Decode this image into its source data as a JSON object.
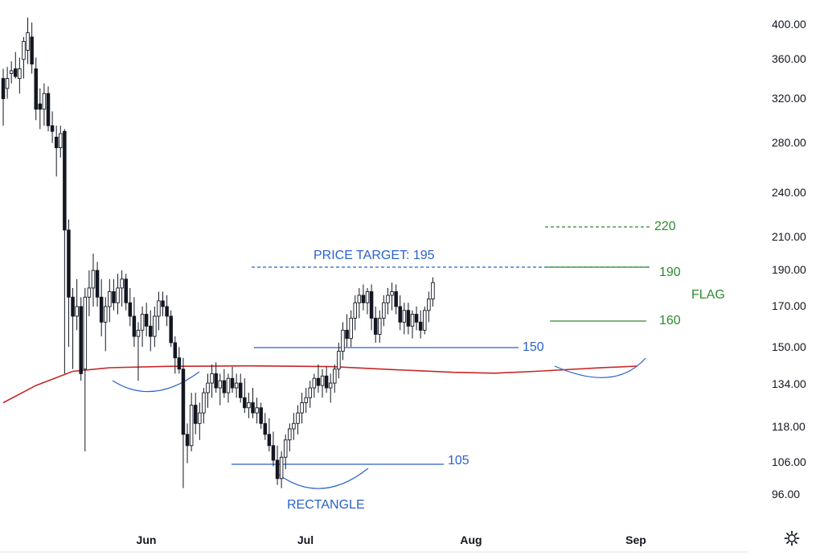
{
  "colors": {
    "candle": "#131722",
    "ma_line": "#c62828",
    "blue": "#2962c9",
    "green": "#2e8b2e",
    "axis_text": "#131722",
    "background": "#ffffff"
  },
  "x_axis": {
    "labels": [
      "Jun",
      "Jul",
      "Aug",
      "Sep"
    ]
  },
  "y_axis": {
    "scale": "log",
    "range": [
      88,
      440
    ],
    "labels": [
      "400.00",
      "360.00",
      "320.00",
      "280.00",
      "240.00",
      "210.00",
      "190.00",
      "170.00",
      "150.00",
      "134.00",
      "118.00",
      "106.00",
      "96.00"
    ]
  },
  "annotations": {
    "price_target": "PRICE TARGET: 195",
    "rectangle": "RECTANGLE",
    "flag": "FLAG",
    "level_150": "150",
    "level_105": "105",
    "level_220": "220",
    "level_190": "190",
    "level_160": "160"
  },
  "settings_icon": "gear-icon",
  "chart_data": {
    "type": "candlestick",
    "y_scale": "log",
    "ylim": [
      88,
      440
    ],
    "x_ticks": [
      "Jun",
      "Jul",
      "Aug",
      "Sep"
    ],
    "moving_average": {
      "color": "#c62828",
      "points": [
        [
          0,
          136
        ],
        [
          8,
          143
        ],
        [
          17,
          149
        ],
        [
          26,
          150.6
        ],
        [
          40,
          151.2
        ],
        [
          60,
          151.4
        ],
        [
          80,
          151.1
        ],
        [
          95,
          149.8
        ],
        [
          110,
          148.6
        ],
        [
          120,
          148.2
        ],
        [
          130,
          149
        ],
        [
          145,
          150.5
        ],
        [
          155,
          151.3
        ]
      ]
    },
    "candles": [
      {
        "o": 350,
        "h": 360,
        "l": 305,
        "c": 330
      },
      {
        "o": 340,
        "h": 362,
        "l": 330,
        "c": 350
      },
      {
        "o": 355,
        "h": 368,
        "l": 345,
        "c": 358
      },
      {
        "o": 360,
        "h": 378,
        "l": 350,
        "c": 352
      },
      {
        "o": 350,
        "h": 372,
        "l": 335,
        "c": 360
      },
      {
        "o": 370,
        "h": 395,
        "l": 350,
        "c": 390
      },
      {
        "o": 380,
        "h": 418,
        "l": 365,
        "c": 400
      },
      {
        "o": 395,
        "h": 412,
        "l": 355,
        "c": 365
      },
      {
        "o": 360,
        "h": 372,
        "l": 310,
        "c": 320
      },
      {
        "o": 325,
        "h": 340,
        "l": 302,
        "c": 320
      },
      {
        "o": 320,
        "h": 345,
        "l": 305,
        "c": 335
      },
      {
        "o": 335,
        "h": 342,
        "l": 300,
        "c": 305
      },
      {
        "o": 305,
        "h": 318,
        "l": 290,
        "c": 300
      },
      {
        "o": 295,
        "h": 305,
        "l": 263,
        "c": 286
      },
      {
        "o": 286,
        "h": 305,
        "l": 278,
        "c": 298
      },
      {
        "o": 300,
        "h": 302,
        "l": 148,
        "c": 225
      },
      {
        "o": 225,
        "h": 232,
        "l": 160,
        "c": 185
      },
      {
        "o": 185,
        "h": 190,
        "l": 150,
        "c": 175
      },
      {
        "o": 175,
        "h": 195,
        "l": 168,
        "c": 180
      },
      {
        "o": 180,
        "h": 185,
        "l": 145,
        "c": 148
      },
      {
        "o": 150,
        "h": 190,
        "l": 118,
        "c": 185
      },
      {
        "o": 185,
        "h": 200,
        "l": 175,
        "c": 190
      },
      {
        "o": 190,
        "h": 210,
        "l": 180,
        "c": 200
      },
      {
        "o": 200,
        "h": 205,
        "l": 180,
        "c": 185
      },
      {
        "o": 185,
        "h": 195,
        "l": 165,
        "c": 172
      },
      {
        "o": 172,
        "h": 185,
        "l": 158,
        "c": 180
      },
      {
        "o": 180,
        "h": 195,
        "l": 172,
        "c": 188
      },
      {
        "o": 188,
        "h": 195,
        "l": 178,
        "c": 182
      },
      {
        "o": 182,
        "h": 198,
        "l": 176,
        "c": 190
      },
      {
        "o": 190,
        "h": 200,
        "l": 180,
        "c": 195
      },
      {
        "o": 195,
        "h": 198,
        "l": 178,
        "c": 182
      },
      {
        "o": 182,
        "h": 190,
        "l": 170,
        "c": 175
      },
      {
        "o": 175,
        "h": 185,
        "l": 160,
        "c": 165
      },
      {
        "o": 165,
        "h": 172,
        "l": 145,
        "c": 168
      },
      {
        "o": 168,
        "h": 180,
        "l": 160,
        "c": 176
      },
      {
        "o": 176,
        "h": 182,
        "l": 165,
        "c": 170
      },
      {
        "o": 170,
        "h": 178,
        "l": 158,
        "c": 165
      },
      {
        "o": 165,
        "h": 180,
        "l": 160,
        "c": 175
      },
      {
        "o": 175,
        "h": 188,
        "l": 168,
        "c": 183
      },
      {
        "o": 183,
        "h": 188,
        "l": 175,
        "c": 180
      },
      {
        "o": 180,
        "h": 186,
        "l": 170,
        "c": 175
      },
      {
        "o": 175,
        "h": 178,
        "l": 160,
        "c": 162
      },
      {
        "o": 162,
        "h": 165,
        "l": 148,
        "c": 155
      },
      {
        "o": 155,
        "h": 160,
        "l": 148,
        "c": 150
      },
      {
        "o": 150,
        "h": 155,
        "l": 106,
        "c": 124
      },
      {
        "o": 124,
        "h": 128,
        "l": 114,
        "c": 120
      },
      {
        "o": 120,
        "h": 140,
        "l": 118,
        "c": 135
      },
      {
        "o": 135,
        "h": 140,
        "l": 124,
        "c": 128
      },
      {
        "o": 128,
        "h": 136,
        "l": 122,
        "c": 132
      },
      {
        "o": 132,
        "h": 142,
        "l": 128,
        "c": 140
      },
      {
        "o": 140,
        "h": 148,
        "l": 134,
        "c": 144
      },
      {
        "o": 144,
        "h": 152,
        "l": 138,
        "c": 148
      },
      {
        "o": 148,
        "h": 153,
        "l": 140,
        "c": 142
      },
      {
        "o": 142,
        "h": 148,
        "l": 135,
        "c": 145
      },
      {
        "o": 145,
        "h": 150,
        "l": 138,
        "c": 140
      },
      {
        "o": 140,
        "h": 148,
        "l": 136,
        "c": 146
      },
      {
        "o": 146,
        "h": 151,
        "l": 140,
        "c": 142
      },
      {
        "o": 142,
        "h": 148,
        "l": 138,
        "c": 144
      },
      {
        "o": 144,
        "h": 148,
        "l": 136,
        "c": 138
      },
      {
        "o": 138,
        "h": 146,
        "l": 132,
        "c": 134
      },
      {
        "o": 134,
        "h": 140,
        "l": 130,
        "c": 136
      },
      {
        "o": 136,
        "h": 142,
        "l": 130,
        "c": 132
      },
      {
        "o": 132,
        "h": 138,
        "l": 128,
        "c": 134
      },
      {
        "o": 134,
        "h": 136,
        "l": 126,
        "c": 128
      },
      {
        "o": 128,
        "h": 132,
        "l": 122,
        "c": 124
      },
      {
        "o": 124,
        "h": 130,
        "l": 118,
        "c": 120
      },
      {
        "o": 120,
        "h": 125,
        "l": 113,
        "c": 115
      },
      {
        "o": 115,
        "h": 120,
        "l": 107,
        "c": 109
      },
      {
        "o": 109,
        "h": 118,
        "l": 106,
        "c": 116
      },
      {
        "o": 116,
        "h": 124,
        "l": 112,
        "c": 122
      },
      {
        "o": 122,
        "h": 128,
        "l": 118,
        "c": 126
      },
      {
        "o": 126,
        "h": 132,
        "l": 122,
        "c": 128
      },
      {
        "o": 128,
        "h": 135,
        "l": 124,
        "c": 132
      },
      {
        "o": 132,
        "h": 140,
        "l": 128,
        "c": 136
      },
      {
        "o": 136,
        "h": 142,
        "l": 132,
        "c": 138
      },
      {
        "o": 138,
        "h": 145,
        "l": 134,
        "c": 142
      },
      {
        "o": 142,
        "h": 148,
        "l": 138,
        "c": 146
      },
      {
        "o": 146,
        "h": 152,
        "l": 140,
        "c": 143
      },
      {
        "o": 143,
        "h": 150,
        "l": 138,
        "c": 147
      },
      {
        "o": 147,
        "h": 151,
        "l": 140,
        "c": 142
      },
      {
        "o": 142,
        "h": 148,
        "l": 136,
        "c": 144
      },
      {
        "o": 144,
        "h": 152,
        "l": 140,
        "c": 150
      },
      {
        "o": 150,
        "h": 162,
        "l": 146,
        "c": 158
      },
      {
        "o": 158,
        "h": 172,
        "l": 154,
        "c": 168
      },
      {
        "o": 168,
        "h": 176,
        "l": 160,
        "c": 164
      },
      {
        "o": 164,
        "h": 178,
        "l": 160,
        "c": 174
      },
      {
        "o": 174,
        "h": 186,
        "l": 168,
        "c": 182
      },
      {
        "o": 182,
        "h": 190,
        "l": 174,
        "c": 186
      },
      {
        "o": 186,
        "h": 192,
        "l": 178,
        "c": 182
      },
      {
        "o": 182,
        "h": 190,
        "l": 176,
        "c": 188
      },
      {
        "o": 188,
        "h": 192,
        "l": 168,
        "c": 174
      },
      {
        "o": 174,
        "h": 180,
        "l": 162,
        "c": 166
      },
      {
        "o": 166,
        "h": 178,
        "l": 162,
        "c": 174
      },
      {
        "o": 174,
        "h": 186,
        "l": 170,
        "c": 182
      },
      {
        "o": 182,
        "h": 190,
        "l": 176,
        "c": 186
      },
      {
        "o": 186,
        "h": 193,
        "l": 178,
        "c": 188
      },
      {
        "o": 188,
        "h": 192,
        "l": 176,
        "c": 180
      },
      {
        "o": 180,
        "h": 186,
        "l": 168,
        "c": 172
      },
      {
        "o": 172,
        "h": 182,
        "l": 166,
        "c": 178
      },
      {
        "o": 178,
        "h": 182,
        "l": 166,
        "c": 170
      },
      {
        "o": 170,
        "h": 178,
        "l": 164,
        "c": 176
      },
      {
        "o": 176,
        "h": 180,
        "l": 168,
        "c": 172
      },
      {
        "o": 172,
        "h": 178,
        "l": 164,
        "c": 168
      },
      {
        "o": 168,
        "h": 180,
        "l": 166,
        "c": 178
      },
      {
        "o": 178,
        "h": 188,
        "l": 172,
        "c": 184
      },
      {
        "o": 184,
        "h": 196,
        "l": 180,
        "c": 193
      }
    ]
  }
}
